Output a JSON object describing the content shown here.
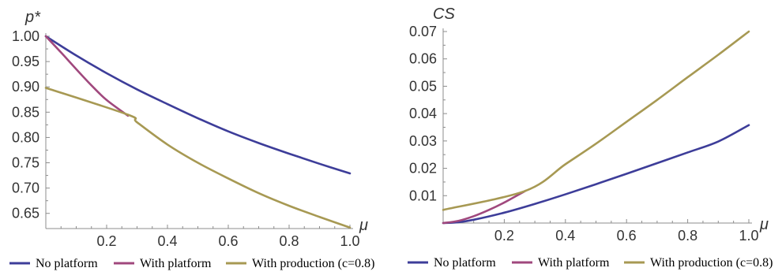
{
  "colors": {
    "no_platform": "#3d3d99",
    "with_platform": "#a0487d",
    "with_production": "#a79953",
    "axis": "#8c8c8c"
  },
  "legend": {
    "no_platform": "No platform",
    "with_platform": "With platform",
    "with_production": "With production (c=0.8)"
  },
  "chart_data": [
    {
      "type": "line",
      "ylabel": "p*",
      "xlabel": "μ",
      "xlim": [
        0,
        1.0
      ],
      "ylim": [
        0.62,
        1.0
      ],
      "xticks": [
        0.2,
        0.4,
        0.6,
        0.8,
        1.0
      ],
      "xtick_labels": [
        "0.2",
        "0.4",
        "0.6",
        "0.8",
        "1.0"
      ],
      "yticks": [
        1.0,
        0.95,
        0.9,
        0.85,
        0.8,
        0.75,
        0.7,
        0.65
      ],
      "ytick_labels": [
        "1.00",
        "0.95",
        "0.90",
        "0.85",
        "0.80",
        "0.75",
        "0.70",
        "0.65"
      ],
      "series": [
        {
          "name": "No platform",
          "color_key": "no_platform",
          "x": [
            0.0,
            0.1,
            0.2,
            0.3,
            0.4,
            0.5,
            0.6,
            0.7,
            0.8,
            0.9,
            1.0
          ],
          "y": [
            1.0,
            0.962,
            0.927,
            0.895,
            0.866,
            0.838,
            0.812,
            0.789,
            0.768,
            0.748,
            0.729
          ]
        },
        {
          "name": "With platform",
          "color_key": "with_platform",
          "x": [
            0.0,
            0.05,
            0.1,
            0.15,
            0.2,
            0.27
          ],
          "y": [
            1.0,
            0.968,
            0.935,
            0.903,
            0.874,
            0.843
          ]
        },
        {
          "name": "With production (c=0.8)",
          "color_key": "with_production",
          "x": [
            0.0,
            0.27,
            0.3,
            0.4,
            0.5,
            0.6,
            0.7,
            0.8,
            0.9,
            1.0
          ],
          "y": [
            0.898,
            0.845,
            0.83,
            0.786,
            0.75,
            0.719,
            0.69,
            0.665,
            0.643,
            0.622
          ]
        }
      ]
    },
    {
      "type": "line",
      "ylabel": "CS",
      "xlabel": "μ",
      "xlim": [
        0,
        1.0
      ],
      "ylim": [
        0,
        0.07
      ],
      "xticks": [
        0.2,
        0.4,
        0.6,
        0.8,
        1.0
      ],
      "xtick_labels": [
        "0.2",
        "0.4",
        "0.6",
        "0.8",
        "1.0"
      ],
      "yticks": [
        0.07,
        0.06,
        0.05,
        0.04,
        0.03,
        0.02,
        0.01
      ],
      "ytick_labels": [
        "0.07",
        "0.06",
        "0.05",
        "0.04",
        "0.03",
        "0.02",
        "0.01"
      ],
      "series": [
        {
          "name": "No platform",
          "color_key": "no_platform",
          "x": [
            0.0,
            0.05,
            0.1,
            0.2,
            0.3,
            0.4,
            0.5,
            0.6,
            0.7,
            0.8,
            0.9,
            1.0
          ],
          "y": [
            0.0,
            0.0003,
            0.0012,
            0.0038,
            0.007,
            0.0105,
            0.0142,
            0.018,
            0.0219,
            0.0258,
            0.0298,
            0.0358
          ]
        },
        {
          "name": "With platform",
          "color_key": "with_platform",
          "x": [
            0.0,
            0.05,
            0.1,
            0.15,
            0.2,
            0.27
          ],
          "y": [
            0.0,
            0.0008,
            0.0025,
            0.0048,
            0.0075,
            0.0118
          ]
        },
        {
          "name": "With production (c=0.8)",
          "color_key": "with_production",
          "x": [
            0.0,
            0.27,
            0.4,
            0.5,
            0.6,
            0.7,
            0.8,
            0.9,
            1.0
          ],
          "y": [
            0.0048,
            0.0118,
            0.0215,
            0.029,
            0.037,
            0.045,
            0.0533,
            0.0615,
            0.07
          ]
        }
      ]
    }
  ]
}
